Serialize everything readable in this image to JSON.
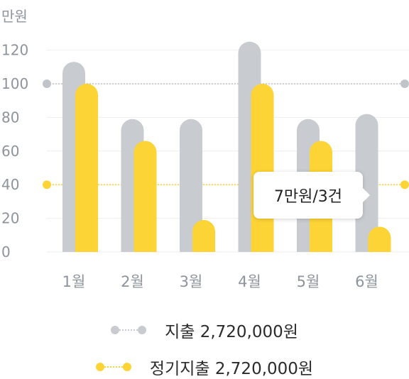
{
  "chart_data": {
    "type": "bar",
    "unit_label": "만원",
    "categories": [
      "1월",
      "2월",
      "3월",
      "4월",
      "5월",
      "6월"
    ],
    "yticks": [
      0,
      20,
      40,
      60,
      80,
      100,
      120
    ],
    "ylim": [
      0,
      125
    ],
    "series": [
      {
        "name": "지출",
        "color": "#c8cbcf",
        "values": [
          113,
          79,
          79,
          125,
          79,
          82
        ]
      },
      {
        "name": "정기지출",
        "color": "#fdd435",
        "values": [
          100,
          66,
          19,
          100,
          66,
          15
        ]
      }
    ],
    "reference_lines": [
      {
        "series": "지출",
        "value": 100,
        "color": "#c0c3c7"
      },
      {
        "series": "정기지출",
        "value": 40,
        "color": "#fdd435"
      }
    ]
  },
  "tooltip": {
    "text": "7만원/3건"
  },
  "legend": [
    {
      "label": "지출 2,720,000원",
      "color": "#c8cbcf"
    },
    {
      "label": "정기지출 2,720,000원",
      "color": "#fdd435"
    }
  ]
}
